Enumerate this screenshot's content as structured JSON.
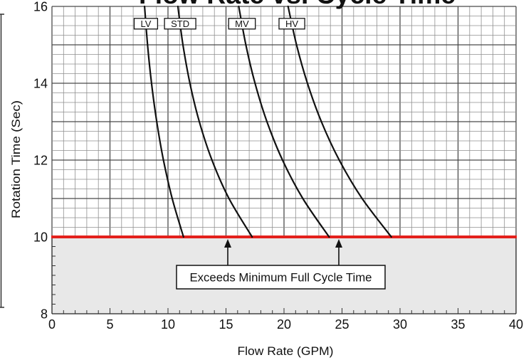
{
  "chart_data": {
    "type": "line",
    "title": "Flow Rate vs. Cycle Time",
    "xlabel": "Flow Rate (GPM)",
    "ylabel": "Rotation Time (Sec)",
    "xlim": [
      0,
      40
    ],
    "ylim": [
      8,
      16
    ],
    "x_ticks": [
      0,
      5,
      10,
      15,
      20,
      25,
      30,
      35,
      40
    ],
    "y_ticks": [
      16,
      14,
      12,
      10,
      8
    ],
    "grid": true,
    "series": [
      {
        "name": "LV",
        "points": [
          [
            7.98,
            16
          ],
          [
            8.24,
            15
          ],
          [
            8.58,
            14
          ],
          [
            9.03,
            13
          ],
          [
            9.61,
            12
          ],
          [
            10.36,
            11
          ],
          [
            11.34,
            10
          ]
        ]
      },
      {
        "name": "STD",
        "points": [
          [
            10.85,
            16
          ],
          [
            11.29,
            15
          ],
          [
            11.89,
            14
          ],
          [
            12.7,
            13
          ],
          [
            13.79,
            12
          ],
          [
            15.26,
            11
          ],
          [
            17.25,
            10
          ]
        ]
      },
      {
        "name": "MV",
        "points": [
          [
            16.1,
            16
          ],
          [
            16.71,
            15
          ],
          [
            17.5,
            14
          ],
          [
            18.53,
            13
          ],
          [
            19.87,
            12
          ],
          [
            21.62,
            11
          ],
          [
            23.89,
            10
          ]
        ]
      },
      {
        "name": "HV",
        "points": [
          [
            20.35,
            16
          ],
          [
            21.08,
            15
          ],
          [
            22.02,
            14
          ],
          [
            23.22,
            13
          ],
          [
            24.76,
            12
          ],
          [
            26.73,
            11
          ],
          [
            29.25,
            10
          ]
        ]
      }
    ],
    "line_color": "#111111",
    "reference_line": {
      "y": 10,
      "color": "#e3211c"
    },
    "shaded_region": {
      "below_y": 10,
      "color": "#e8e8e8"
    },
    "annotation": {
      "text": "Exceeds Minimum Full Cycle Time"
    }
  }
}
